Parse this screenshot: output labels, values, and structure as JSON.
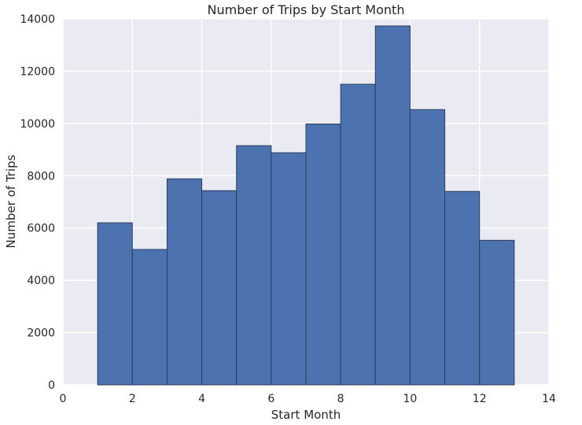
{
  "chart_data": {
    "type": "bar",
    "title": "Number of Trips by Start Month",
    "xlabel": "Start Month",
    "ylabel": "Number of Trips",
    "xlim": [
      0,
      14
    ],
    "ylim": [
      0,
      14000
    ],
    "grid": true,
    "bins": [
      {
        "start": 1,
        "end": 2,
        "value": 6200
      },
      {
        "start": 2,
        "end": 3,
        "value": 5180
      },
      {
        "start": 3,
        "end": 4,
        "value": 7880
      },
      {
        "start": 4,
        "end": 5,
        "value": 7430
      },
      {
        "start": 5,
        "end": 6,
        "value": 9150
      },
      {
        "start": 6,
        "end": 7,
        "value": 8880
      },
      {
        "start": 7,
        "end": 8,
        "value": 9980
      },
      {
        "start": 8,
        "end": 9,
        "value": 11500
      },
      {
        "start": 9,
        "end": 10,
        "value": 13730
      },
      {
        "start": 10,
        "end": 11,
        "value": 10530
      },
      {
        "start": 11,
        "end": 12,
        "value": 7400
      },
      {
        "start": 12,
        "end": 13,
        "value": 5530
      }
    ],
    "xticks": [
      "0",
      "2",
      "4",
      "6",
      "8",
      "10",
      "12",
      "14"
    ],
    "yticks": [
      "0",
      "2000",
      "4000",
      "6000",
      "8000",
      "10000",
      "12000",
      "14000"
    ],
    "colors": {
      "bar_fill": "#4c72b0",
      "bar_edge": "#2d3e5a",
      "plot_background": "#eaeaf2",
      "grid": "#ffffff"
    }
  }
}
